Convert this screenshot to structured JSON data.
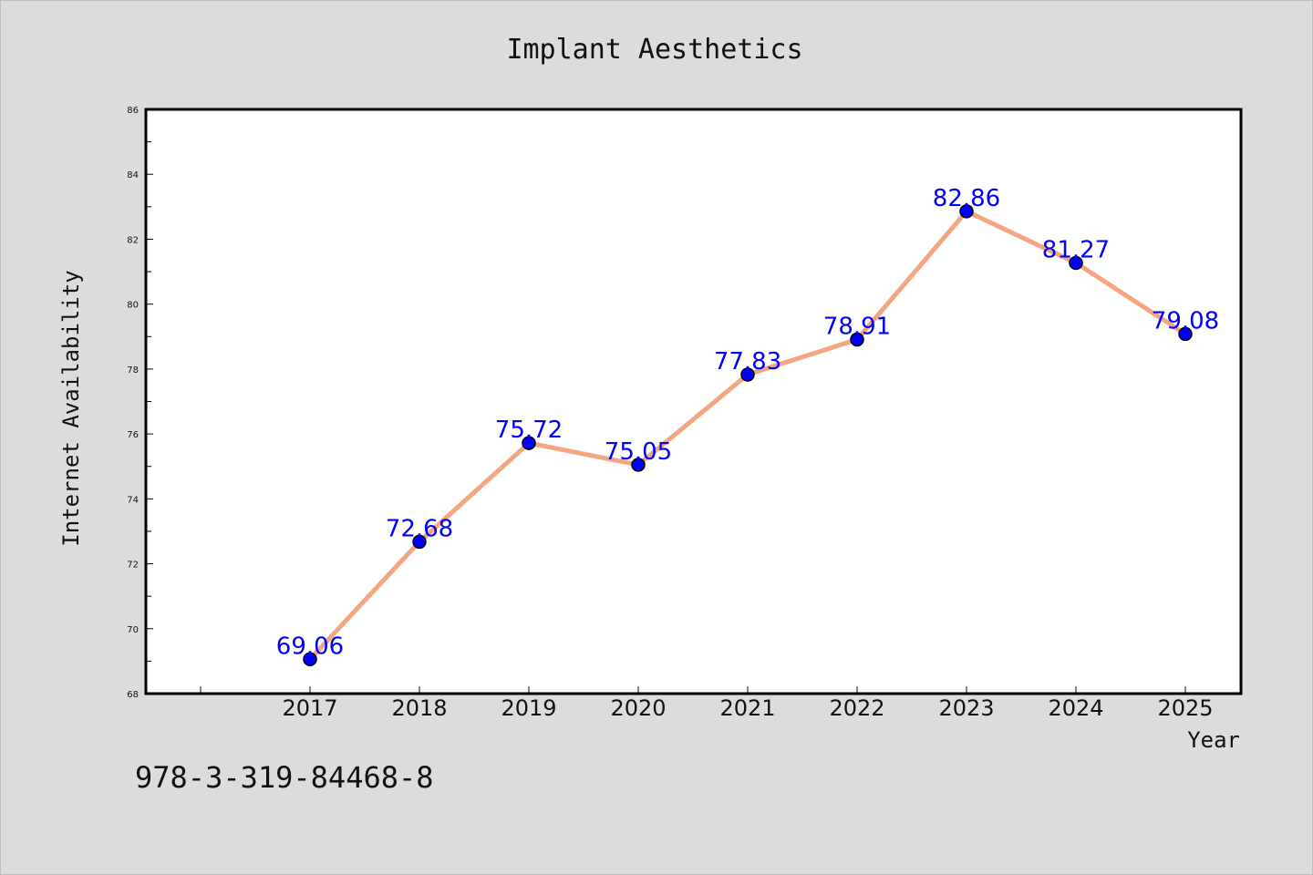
{
  "chart_data": {
    "type": "line",
    "title": "Implant Aesthetics",
    "xlabel": "Year",
    "ylabel": "Internet Availability",
    "categories": [
      "2017",
      "2018",
      "2019",
      "2020",
      "2021",
      "2022",
      "2023",
      "2024",
      "2025"
    ],
    "series": [
      {
        "values": [
          69.06,
          72.68,
          75.72,
          75.05,
          77.83,
          78.91,
          82.86,
          81.27,
          79.08
        ],
        "labels": [
          "69.06",
          "72.68",
          "75.72",
          "75.05",
          "77.83",
          "78.91",
          "82.86",
          "81.27",
          "79.08"
        ],
        "line_color": "#f4a582",
        "marker_color": "#0000ff"
      }
    ],
    "ylim": [
      68,
      86
    ],
    "yticks": [
      "68",
      "70",
      "72",
      "74",
      "76",
      "78",
      "80",
      "82",
      "84",
      "86"
    ],
    "grid": false,
    "legend": "none"
  },
  "footnote": "978-3-319-84468-8",
  "colors": {
    "background": "#dcdcdc",
    "plot_area": "#ffffff",
    "axis": "#000000",
    "data_label": "#0000ff"
  }
}
